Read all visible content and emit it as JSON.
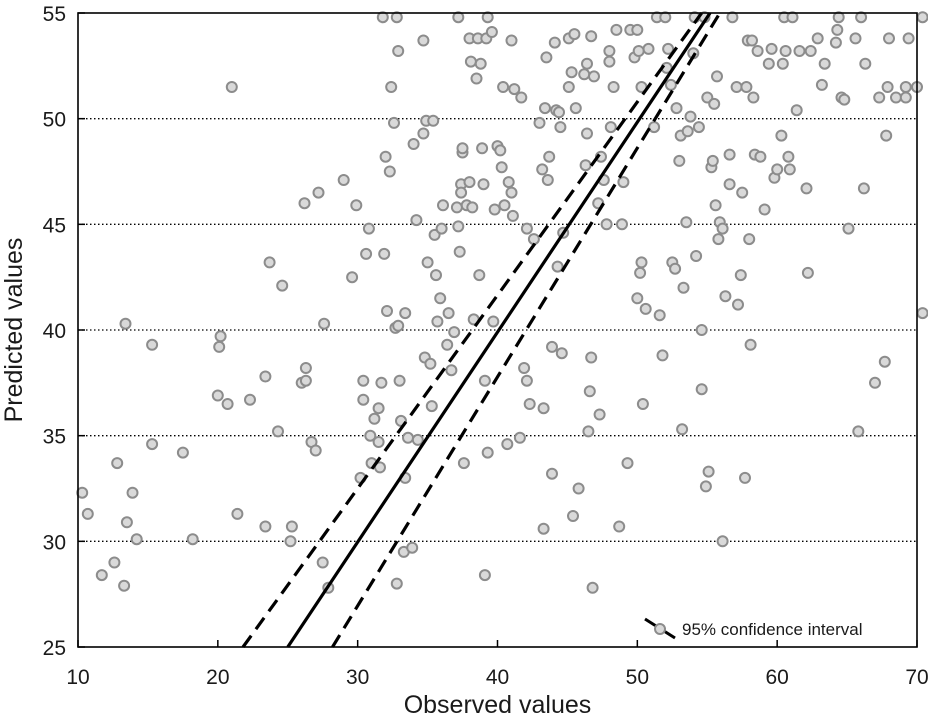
{
  "chart_data": {
    "type": "scatter",
    "xlabel": "Observed values",
    "ylabel": "Predicted values",
    "xlim": [
      10,
      70
    ],
    "ylim": [
      25,
      55
    ],
    "xticks": [
      "10",
      "20",
      "30",
      "40",
      "50",
      "60",
      "70"
    ],
    "yticks": [
      "25",
      "30",
      "35",
      "40",
      "45",
      "50",
      "55"
    ],
    "grid": "horizontal dotted",
    "legend_position": "bottom-right",
    "legend": {
      "label": "95% confidence interval"
    },
    "colors": {
      "marker_fill": "#d9d9d9",
      "marker_edge": "#8c8c8c",
      "line": "#000000",
      "grid": "#000000"
    },
    "fit_line": {
      "x0": 25.0,
      "x1": 55.2
    },
    "ci_upper": {
      "x0": 21.8,
      "x1": 54.6
    },
    "ci_lower": {
      "x0": 28.2,
      "x1": 55.9
    },
    "points": [
      [
        10.3,
        32.3
      ],
      [
        10.7,
        31.3
      ],
      [
        11.7,
        28.4
      ],
      [
        12.6,
        29.0
      ],
      [
        12.8,
        33.7
      ],
      [
        13.3,
        27.9
      ],
      [
        13.4,
        40.3
      ],
      [
        13.5,
        30.9
      ],
      [
        13.9,
        32.3
      ],
      [
        14.2,
        30.1
      ],
      [
        15.3,
        39.3
      ],
      [
        15.3,
        34.6
      ],
      [
        17.5,
        34.2
      ],
      [
        18.2,
        30.1
      ],
      [
        20.0,
        36.9
      ],
      [
        20.1,
        39.2
      ],
      [
        20.2,
        39.7
      ],
      [
        20.7,
        36.5
      ],
      [
        21.0,
        51.5
      ],
      [
        21.4,
        31.3
      ],
      [
        22.3,
        36.7
      ],
      [
        23.4,
        37.8
      ],
      [
        23.4,
        30.7
      ],
      [
        23.7,
        43.2
      ],
      [
        24.3,
        35.2
      ],
      [
        24.6,
        42.1
      ],
      [
        25.2,
        30.0
      ],
      [
        25.3,
        30.7
      ],
      [
        26.0,
        37.5
      ],
      [
        26.2,
        46.0
      ],
      [
        26.3,
        38.2
      ],
      [
        26.3,
        37.6
      ],
      [
        26.7,
        34.7
      ],
      [
        27.0,
        34.3
      ],
      [
        27.2,
        46.5
      ],
      [
        27.5,
        29.0
      ],
      [
        27.6,
        40.3
      ],
      [
        27.9,
        27.8
      ],
      [
        29.0,
        47.1
      ],
      [
        29.6,
        42.5
      ],
      [
        29.9,
        45.9
      ],
      [
        30.2,
        33.0
      ],
      [
        30.4,
        37.6
      ],
      [
        30.4,
        36.7
      ],
      [
        30.6,
        43.6
      ],
      [
        30.8,
        44.8
      ],
      [
        30.9,
        35.0
      ],
      [
        31.0,
        33.7
      ],
      [
        31.2,
        35.8
      ],
      [
        31.5,
        34.7
      ],
      [
        31.5,
        36.3
      ],
      [
        31.6,
        33.5
      ],
      [
        31.7,
        37.5
      ],
      [
        31.8,
        54.8
      ],
      [
        31.9,
        43.6
      ],
      [
        32.0,
        48.2
      ],
      [
        32.1,
        40.9
      ],
      [
        32.3,
        47.5
      ],
      [
        32.4,
        51.5
      ],
      [
        32.6,
        49.8
      ],
      [
        32.7,
        40.1
      ],
      [
        32.8,
        54.8
      ],
      [
        32.8,
        28.0
      ],
      [
        32.9,
        53.2
      ],
      [
        32.9,
        40.2
      ],
      [
        33.0,
        37.6
      ],
      [
        33.1,
        35.7
      ],
      [
        33.4,
        33.0
      ],
      [
        33.3,
        29.5
      ],
      [
        33.4,
        40.8
      ],
      [
        33.6,
        34.9
      ],
      [
        33.9,
        29.7
      ],
      [
        34.0,
        48.8
      ],
      [
        34.2,
        45.2
      ],
      [
        34.3,
        34.8
      ],
      [
        34.7,
        53.7
      ],
      [
        34.7,
        49.3
      ],
      [
        34.8,
        38.7
      ],
      [
        34.9,
        49.9
      ],
      [
        35.0,
        43.2
      ],
      [
        35.2,
        38.4
      ],
      [
        35.3,
        36.4
      ],
      [
        35.4,
        49.9
      ],
      [
        35.5,
        44.5
      ],
      [
        35.6,
        42.6
      ],
      [
        35.7,
        40.4
      ],
      [
        35.9,
        41.5
      ],
      [
        36.0,
        44.8
      ],
      [
        36.1,
        45.9
      ],
      [
        36.4,
        39.3
      ],
      [
        36.5,
        40.8
      ],
      [
        36.7,
        38.1
      ],
      [
        36.9,
        39.9
      ],
      [
        37.1,
        45.8
      ],
      [
        37.2,
        44.9
      ],
      [
        37.2,
        54.8
      ],
      [
        37.3,
        43.7
      ],
      [
        37.4,
        46.9
      ],
      [
        37.4,
        46.5
      ],
      [
        37.5,
        48.4
      ],
      [
        37.5,
        48.6
      ],
      [
        37.6,
        33.7
      ],
      [
        37.8,
        45.9
      ],
      [
        38.0,
        47.0
      ],
      [
        38.0,
        53.8
      ],
      [
        38.1,
        52.7
      ],
      [
        38.2,
        45.8
      ],
      [
        38.3,
        40.5
      ],
      [
        38.5,
        51.9
      ],
      [
        38.6,
        53.8
      ],
      [
        38.7,
        42.6
      ],
      [
        38.8,
        52.6
      ],
      [
        38.9,
        48.6
      ],
      [
        39.0,
        46.9
      ],
      [
        39.1,
        37.6
      ],
      [
        39.1,
        28.4
      ],
      [
        39.2,
        53.8
      ],
      [
        39.3,
        54.8
      ],
      [
        39.3,
        34.2
      ],
      [
        39.6,
        54.1
      ],
      [
        39.7,
        40.4
      ],
      [
        39.8,
        45.7
      ],
      [
        40.0,
        48.7
      ],
      [
        40.2,
        48.5
      ],
      [
        40.3,
        47.7
      ],
      [
        40.4,
        51.5
      ],
      [
        40.5,
        45.9
      ],
      [
        40.7,
        34.6
      ],
      [
        40.8,
        47.0
      ],
      [
        41.0,
        53.7
      ],
      [
        41.0,
        46.5
      ],
      [
        41.1,
        45.4
      ],
      [
        41.2,
        51.4
      ],
      [
        41.6,
        34.9
      ],
      [
        41.7,
        51.0
      ],
      [
        41.9,
        38.2
      ],
      [
        42.1,
        37.6
      ],
      [
        42.1,
        44.8
      ],
      [
        42.3,
        36.5
      ],
      [
        42.6,
        44.3
      ],
      [
        43.0,
        49.8
      ],
      [
        43.2,
        47.6
      ],
      [
        43.3,
        30.6
      ],
      [
        43.3,
        36.3
      ],
      [
        43.4,
        50.5
      ],
      [
        43.5,
        52.9
      ],
      [
        43.6,
        47.1
      ],
      [
        43.7,
        48.2
      ],
      [
        43.9,
        39.2
      ],
      [
        43.9,
        33.2
      ],
      [
        44.1,
        53.6
      ],
      [
        44.2,
        50.4
      ],
      [
        44.3,
        43.0
      ],
      [
        44.4,
        50.3
      ],
      [
        44.5,
        49.6
      ],
      [
        44.6,
        38.9
      ],
      [
        44.7,
        44.6
      ],
      [
        45.1,
        53.8
      ],
      [
        45.1,
        51.5
      ],
      [
        45.3,
        52.2
      ],
      [
        45.4,
        31.2
      ],
      [
        45.5,
        54.0
      ],
      [
        45.6,
        50.5
      ],
      [
        45.8,
        32.5
      ],
      [
        46.2,
        52.1
      ],
      [
        46.3,
        47.8
      ],
      [
        46.4,
        52.6
      ],
      [
        46.4,
        49.3
      ],
      [
        46.5,
        35.2
      ],
      [
        46.6,
        37.1
      ],
      [
        46.7,
        38.7
      ],
      [
        46.7,
        53.9
      ],
      [
        46.8,
        27.8
      ],
      [
        46.9,
        52.0
      ],
      [
        47.2,
        46.0
      ],
      [
        47.3,
        36.0
      ],
      [
        47.4,
        48.2
      ],
      [
        47.6,
        47.1
      ],
      [
        47.8,
        45.0
      ],
      [
        48.0,
        53.2
      ],
      [
        48.0,
        52.7
      ],
      [
        48.1,
        49.6
      ],
      [
        48.3,
        51.5
      ],
      [
        48.5,
        54.2
      ],
      [
        48.7,
        30.7
      ],
      [
        48.9,
        45.0
      ],
      [
        49.0,
        47.0
      ],
      [
        49.3,
        33.7
      ],
      [
        49.5,
        54.2
      ],
      [
        49.8,
        52.9
      ],
      [
        50.0,
        54.2
      ],
      [
        50.0,
        41.5
      ],
      [
        50.1,
        53.2
      ],
      [
        50.2,
        42.7
      ],
      [
        50.3,
        51.5
      ],
      [
        50.3,
        43.2
      ],
      [
        50.4,
        36.5
      ],
      [
        50.6,
        41.0
      ],
      [
        50.8,
        53.3
      ],
      [
        51.2,
        49.6
      ],
      [
        51.4,
        54.8
      ],
      [
        51.6,
        40.7
      ],
      [
        51.8,
        38.8
      ],
      [
        52.0,
        54.8
      ],
      [
        52.1,
        52.4
      ],
      [
        52.2,
        53.3
      ],
      [
        52.4,
        51.6
      ],
      [
        52.5,
        43.2
      ],
      [
        52.7,
        42.9
      ],
      [
        52.8,
        50.5
      ],
      [
        53.0,
        48.0
      ],
      [
        53.1,
        49.2
      ],
      [
        53.2,
        35.3
      ],
      [
        53.3,
        42.0
      ],
      [
        53.5,
        45.1
      ],
      [
        53.6,
        49.4
      ],
      [
        53.8,
        50.1
      ],
      [
        54.0,
        53.1
      ],
      [
        54.1,
        54.8
      ],
      [
        54.2,
        43.5
      ],
      [
        54.4,
        49.6
      ],
      [
        54.6,
        40.0
      ],
      [
        54.6,
        37.2
      ],
      [
        54.8,
        54.8
      ],
      [
        54.9,
        32.6
      ],
      [
        55.0,
        51.0
      ],
      [
        55.1,
        33.3
      ],
      [
        55.3,
        47.7
      ],
      [
        55.4,
        48.0
      ],
      [
        55.5,
        50.7
      ],
      [
        55.6,
        45.9
      ],
      [
        55.7,
        52.0
      ],
      [
        55.8,
        44.3
      ],
      [
        55.9,
        45.1
      ],
      [
        56.1,
        44.8
      ],
      [
        56.1,
        30.0
      ],
      [
        56.3,
        41.6
      ],
      [
        56.6,
        48.3
      ],
      [
        56.6,
        46.9
      ],
      [
        56.8,
        54.8
      ],
      [
        57.1,
        51.5
      ],
      [
        57.2,
        41.2
      ],
      [
        57.4,
        42.6
      ],
      [
        57.5,
        46.5
      ],
      [
        57.7,
        33.0
      ],
      [
        57.8,
        51.5
      ],
      [
        57.9,
        53.7
      ],
      [
        58.0,
        44.3
      ],
      [
        58.1,
        39.3
      ],
      [
        58.2,
        53.7
      ],
      [
        58.3,
        51.0
      ],
      [
        58.4,
        48.3
      ],
      [
        58.6,
        53.2
      ],
      [
        58.8,
        48.2
      ],
      [
        59.1,
        45.7
      ],
      [
        59.4,
        52.6
      ],
      [
        59.6,
        53.3
      ],
      [
        59.8,
        47.2
      ],
      [
        60.0,
        47.6
      ],
      [
        60.3,
        49.2
      ],
      [
        60.4,
        52.6
      ],
      [
        60.5,
        54.8
      ],
      [
        60.6,
        53.2
      ],
      [
        60.8,
        48.2
      ],
      [
        60.9,
        47.6
      ],
      [
        61.1,
        54.8
      ],
      [
        61.4,
        50.4
      ],
      [
        61.6,
        53.2
      ],
      [
        62.1,
        46.7
      ],
      [
        62.2,
        42.7
      ],
      [
        62.4,
        53.2
      ],
      [
        62.9,
        53.8
      ],
      [
        63.2,
        51.6
      ],
      [
        63.4,
        52.6
      ],
      [
        64.2,
        53.6
      ],
      [
        64.3,
        54.2
      ],
      [
        64.4,
        54.8
      ],
      [
        64.6,
        51.0
      ],
      [
        64.8,
        50.9
      ],
      [
        65.1,
        44.8
      ],
      [
        65.6,
        53.8
      ],
      [
        65.8,
        35.2
      ],
      [
        66.0,
        54.8
      ],
      [
        66.2,
        46.7
      ],
      [
        66.3,
        52.6
      ],
      [
        67.0,
        37.5
      ],
      [
        67.3,
        51.0
      ],
      [
        67.7,
        38.5
      ],
      [
        67.8,
        49.2
      ],
      [
        67.9,
        51.5
      ],
      [
        68.0,
        53.8
      ],
      [
        68.5,
        51.0
      ],
      [
        69.2,
        51.5
      ],
      [
        69.2,
        51.0
      ],
      [
        69.4,
        53.8
      ],
      [
        70.0,
        51.5
      ],
      [
        70.4,
        40.8
      ],
      [
        70.4,
        54.8
      ]
    ]
  }
}
